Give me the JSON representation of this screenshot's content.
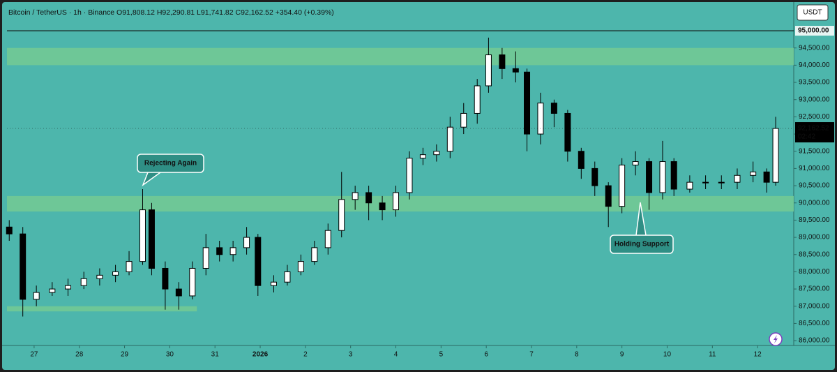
{
  "chart_data": {
    "type": "candlestick",
    "title": "Bitcoin / TetherUS · 1h · Binance  O91,808.12 H92,290.81 L91,741.82 C92,162.52 +354.40 (+0.39%)",
    "currency": "USDT",
    "x": [
      -0.55,
      -0.25,
      0.05,
      0.4,
      0.75,
      1.1,
      1.45,
      1.8,
      2.1,
      2.4,
      2.6,
      2.9,
      3.2,
      3.5,
      3.8,
      4.1,
      4.4,
      4.7,
      4.95,
      5.3,
      5.6,
      5.9,
      6.2,
      6.5,
      6.8,
      7.1,
      7.4,
      7.7,
      8.0,
      8.3,
      8.6,
      8.9,
      9.2,
      9.5,
      9.8,
      10.05,
      10.35,
      10.65,
      10.9,
      11.2,
      11.5,
      11.8,
      12.1,
      12.4,
      12.7,
      13.0,
      13.3,
      13.6,
      13.9,
      14.15,
      14.5,
      14.85,
      15.2,
      15.55,
      15.9,
      16.2,
      16.4
    ],
    "open": [
      89300,
      89100,
      87200,
      87400,
      87500,
      87600,
      87800,
      87900,
      88000,
      88300,
      89800,
      88100,
      87500,
      87300,
      88100,
      88700,
      88500,
      88700,
      89000,
      87600,
      87700,
      88000,
      88300,
      88700,
      89200,
      90100,
      90300,
      90000,
      89800,
      90300,
      91300,
      91400,
      91500,
      92200,
      92600,
      93400,
      94300,
      93900,
      93800,
      92000,
      92900,
      92600,
      91500,
      91000,
      90500,
      89900,
      91100,
      91200,
      90300,
      91200,
      90400,
      90600,
      90600,
      90600,
      90800,
      90900,
      90600
    ],
    "high": [
      89500,
      89300,
      87600,
      87700,
      87800,
      88000,
      88100,
      88200,
      88600,
      90400,
      90000,
      88300,
      87700,
      88300,
      89100,
      88900,
      88900,
      89300,
      89100,
      87900,
      88200,
      88500,
      88900,
      89400,
      90900,
      90500,
      90500,
      90200,
      90500,
      91500,
      91600,
      91700,
      92500,
      92900,
      93600,
      94800,
      94500,
      94400,
      93900,
      93200,
      93000,
      92700,
      91600,
      91200,
      90600,
      91300,
      91500,
      91300,
      91800,
      91300,
      90800,
      90800,
      90800,
      91000,
      91200,
      91000,
      92500
    ],
    "low": [
      88900,
      86700,
      87000,
      87300,
      87300,
      87500,
      87600,
      87700,
      87900,
      88200,
      87900,
      86900,
      86900,
      87200,
      87900,
      88300,
      88300,
      88500,
      87300,
      87400,
      87600,
      87900,
      88200,
      88500,
      89000,
      89800,
      89500,
      89500,
      89600,
      90100,
      91100,
      91200,
      91300,
      92000,
      92300,
      93200,
      93600,
      93500,
      91500,
      91700,
      92200,
      91200,
      90700,
      90200,
      89300,
      89700,
      90800,
      89800,
      90100,
      90200,
      90300,
      90400,
      90400,
      90400,
      90600,
      90300,
      90500
    ],
    "close": [
      89100,
      87200,
      87400,
      87500,
      87600,
      87800,
      87900,
      88000,
      88300,
      89800,
      88100,
      87500,
      87300,
      88100,
      88700,
      88500,
      88700,
      89000,
      87600,
      87700,
      88000,
      88300,
      88700,
      89200,
      90100,
      90300,
      90000,
      89800,
      90300,
      91300,
      91400,
      91500,
      92200,
      92600,
      93400,
      94300,
      93900,
      93800,
      92000,
      92900,
      92600,
      91500,
      91000,
      90500,
      89900,
      91100,
      91200,
      90300,
      91200,
      90400,
      90600,
      90600,
      90600,
      90800,
      90900,
      90600,
      92162.52
    ],
    "last_price_label": "92,162.52",
    "countdown": "02:42",
    "up_color": "#ffffff",
    "down_color": "#000000",
    "background": "#4db6ac",
    "zone_color": "#72c995",
    "zones": [
      {
        "ylim": [
          94000,
          94500
        ]
      },
      {
        "ylim": [
          89750,
          90200
        ]
      },
      {
        "ylim": [
          86850,
          87000
        ],
        "xlim": [
          -0.6,
          3.6
        ]
      }
    ],
    "hline": {
      "value": 95000,
      "label": "95,000.00"
    },
    "annotations": [
      "Rejecting Again",
      "Holding Support"
    ],
    "xlim": [
      -0.6,
      16.8
    ],
    "xticks": [
      {
        "value": 0,
        "label": "27"
      },
      {
        "value": 1,
        "label": "28"
      },
      {
        "value": 2,
        "label": "29"
      },
      {
        "value": 3,
        "label": "30"
      },
      {
        "value": 4,
        "label": "31"
      },
      {
        "value": 5,
        "label": "2026"
      },
      {
        "value": 6,
        "label": "2"
      },
      {
        "value": 7,
        "label": "3"
      },
      {
        "value": 8,
        "label": "4"
      },
      {
        "value": 9,
        "label": "5"
      },
      {
        "value": 10,
        "label": "6"
      },
      {
        "value": 11,
        "label": "7"
      },
      {
        "value": 12,
        "label": "8"
      },
      {
        "value": 13,
        "label": "9"
      },
      {
        "value": 14,
        "label": "10"
      },
      {
        "value": 15,
        "label": "11"
      },
      {
        "value": 16,
        "label": "12"
      }
    ],
    "ylim": [
      85860,
      95690
    ],
    "yticks": [
      {
        "value": 86000,
        "label": "86,000.00"
      },
      {
        "value": 86500,
        "label": "86,500.00"
      },
      {
        "value": 87000,
        "label": "87,000.00"
      },
      {
        "value": 87500,
        "label": "87,500.00"
      },
      {
        "value": 88000,
        "label": "88,000.00"
      },
      {
        "value": 88500,
        "label": "88,500.00"
      },
      {
        "value": 89000,
        "label": "89,000.00"
      },
      {
        "value": 89500,
        "label": "89,500.00"
      },
      {
        "value": 90000,
        "label": "90,000.00"
      },
      {
        "value": 90500,
        "label": "90,500.00"
      },
      {
        "value": 91000,
        "label": "91,000.00"
      },
      {
        "value": 91500,
        "label": "91,500.00"
      },
      {
        "value": 92000,
        "label": "92,000.00"
      },
      {
        "value": 92500,
        "label": "92,500.00"
      },
      {
        "value": 93000,
        "label": "93,000.00"
      },
      {
        "value": 93500,
        "label": "93,500.00"
      },
      {
        "value": 94000,
        "label": "94,000.00"
      },
      {
        "value": 94500,
        "label": "94,500.00"
      }
    ]
  }
}
